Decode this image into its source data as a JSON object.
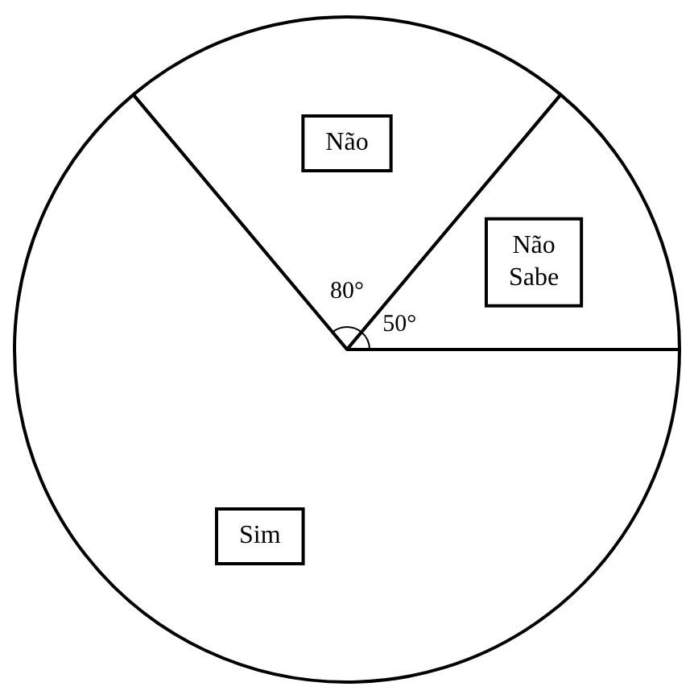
{
  "chart_data": {
    "type": "pie",
    "categories": [
      "Não",
      "Não Sabe",
      "Sim"
    ],
    "values": [
      80,
      50,
      230
    ],
    "colors": [
      "#ffffff",
      "#ffffff",
      "#ffffff"
    ],
    "value_labels": [
      "80°",
      "50°",
      null
    ],
    "legend": false
  }
}
